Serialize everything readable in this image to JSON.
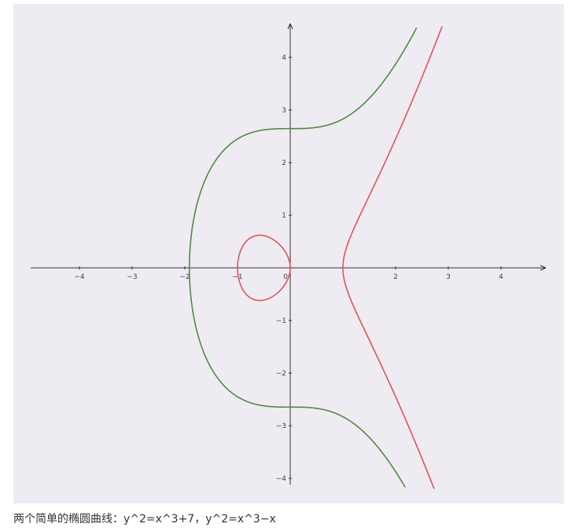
{
  "caption": "两个简单的椭圆曲线：y^2=x^3+7，y^2=x^3−x",
  "colors": {
    "background": "#efebf3",
    "axis": "#333333",
    "series_green": "#4e8c44",
    "series_red": "#e05656"
  },
  "chart_data": {
    "type": "line",
    "title": "",
    "xlabel": "",
    "ylabel": "",
    "xlim": [
      -5,
      5
    ],
    "ylim": [
      -4.2,
      4.6
    ],
    "grid": false,
    "x_ticks": [
      -4,
      -3,
      -2,
      -1,
      0,
      1,
      2,
      3,
      4
    ],
    "x_tick_labels": [
      "−4",
      "−3",
      "−2",
      "−1",
      "0",
      "",
      "2",
      "3",
      "4"
    ],
    "y_ticks": [
      -4,
      -3,
      -2,
      -1,
      1,
      2,
      3,
      4
    ],
    "y_tick_labels": [
      "−4",
      "−3",
      "−2",
      "−1",
      "1",
      "2",
      "3",
      "4"
    ],
    "series": [
      {
        "equation_coeffs": {
          "a": 0,
          "b": 7
        },
        "color": "#4e8c44",
        "points": [
          [
            -1.913,
            0
          ],
          [
            -1.9,
            0.23
          ],
          [
            -1.8,
            0.91
          ],
          [
            -1.6,
            1.43
          ],
          [
            -1.4,
            1.81
          ],
          [
            -1.2,
            2.05
          ],
          [
            -1.0,
            2.45
          ],
          [
            -0.5,
            2.62
          ],
          [
            0,
            2.646
          ],
          [
            0.5,
            2.67
          ],
          [
            1.0,
            2.83
          ],
          [
            1.5,
            3.21
          ],
          [
            2.0,
            3.87
          ],
          [
            2.5,
            4.77
          ]
        ]
      },
      {
        "equation_coeffs": {
          "a": -1,
          "b": 0
        },
        "color": "#e05656",
        "points": [
          [
            -1,
            0
          ],
          [
            -0.9,
            0.41
          ],
          [
            -0.8,
            0.53
          ],
          [
            -0.577,
            0.62
          ],
          [
            -0.3,
            0.52
          ],
          [
            -0.1,
            0.31
          ],
          [
            0,
            0
          ],
          [
            1,
            0
          ],
          [
            1.1,
            0.48
          ],
          [
            1.5,
            1.37
          ],
          [
            2.0,
            2.45
          ],
          [
            2.5,
            3.75
          ],
          [
            2.9,
            4.84
          ]
        ]
      }
    ]
  }
}
